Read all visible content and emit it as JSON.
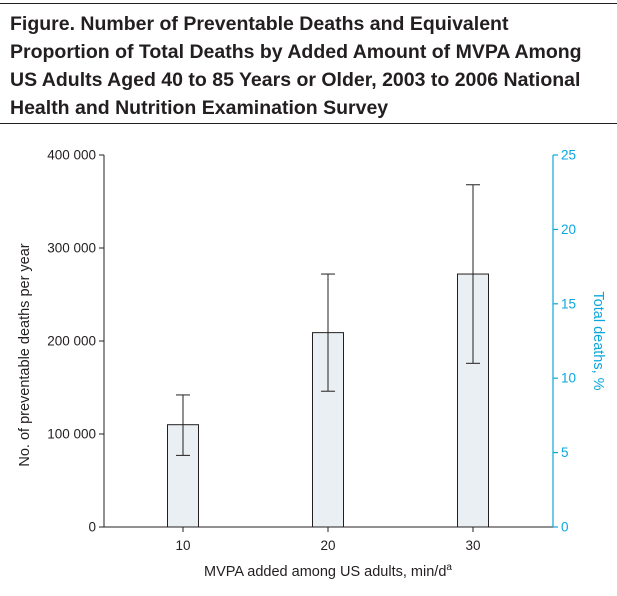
{
  "figure": {
    "title": "Figure. Number of Preventable Deaths and Equivalent Proportion of Total Deaths by Added Amount of MVPA Among US Adults Aged 40 to 85 Years or Older, 2003 to 2006 National Health and Nutrition Examination Survey"
  },
  "chart_data": {
    "type": "bar",
    "title": "",
    "xlabel": "MVPA added among US adults, min/d",
    "xlabel_superscript": "a",
    "ylabel": "No. of preventable deaths per year",
    "y2label": "Total deaths, %",
    "categories": [
      "10",
      "20",
      "30"
    ],
    "series": [
      {
        "values": [
          110000,
          209000,
          272000
        ],
        "error_low": [
          77000,
          146000,
          176000
        ],
        "error_high": [
          142000,
          272000,
          368000
        ]
      }
    ],
    "ylim": [
      0,
      400000
    ],
    "y_ticks": [
      0,
      100000,
      200000,
      300000,
      400000
    ],
    "y_tick_labels": [
      "0",
      "100 000",
      "200 000",
      "300 000",
      "400 000"
    ],
    "y2lim": [
      0,
      25
    ],
    "y2_ticks": [
      0,
      5,
      10,
      15,
      20,
      25
    ],
    "y2_tick_labels": [
      "0",
      "5",
      "10",
      "15",
      "20",
      "25"
    ],
    "grid": false,
    "colors": {
      "bar_fill": "#e9eff2",
      "bar_stroke": "#231f20",
      "axis": "#231f20",
      "secondary_axis": "#0aa7dc"
    }
  }
}
